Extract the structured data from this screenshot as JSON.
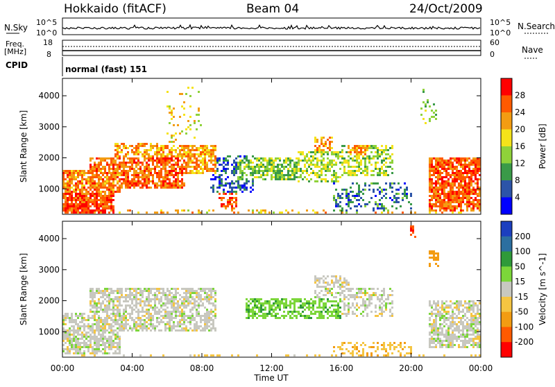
{
  "header": {
    "station": "Hokkaido (fitACF)",
    "beam": "Beam 04",
    "date": "24/Oct/2009"
  },
  "panels": {
    "nsky": {
      "label": "N.Sky",
      "ticks": [
        "10^5",
        "10^0"
      ],
      "right_ticks": [
        "10^5",
        "10^0"
      ],
      "right_label": "N.Search"
    },
    "freq": {
      "label_top": "Freq.",
      "label_unit": "[MHz]",
      "ticks": [
        "18",
        "8"
      ],
      "right_ticks": [
        "60",
        "0"
      ],
      "right_label": "Nave"
    },
    "cpid": {
      "label": "CPID",
      "text": "normal (fast) 151"
    }
  },
  "chart_data": [
    {
      "type": "heatmap",
      "name": "power",
      "xlabel": "Time UT",
      "ylabel": "Slant Range [km]",
      "x_ticks": [
        "00:00",
        "04:00",
        "08:00",
        "12:00",
        "16:00",
        "20:00",
        "00:00"
      ],
      "x_range_hours": [
        0,
        24
      ],
      "y_ticks": [
        1000,
        2000,
        3000,
        4000
      ],
      "y_range_km": [
        180,
        4560
      ],
      "colorbar": {
        "label": "Power [dB]",
        "ticks": [
          4,
          8,
          12,
          16,
          20,
          24,
          28
        ],
        "colors": [
          "#0000ff",
          "#2c54a8",
          "#3a9a48",
          "#8fd23a",
          "#f5e31a",
          "#f39c12",
          "#ff5a00",
          "#ff0000"
        ]
      },
      "blobs": [
        {
          "t0": 0.0,
          "t1": 3.0,
          "r0": 180,
          "r1": 900,
          "v": 27,
          "d": 0.85
        },
        {
          "t0": 0.0,
          "t1": 3.3,
          "r0": 900,
          "r1": 1600,
          "v": 24,
          "d": 0.8
        },
        {
          "t0": 1.5,
          "t1": 7.0,
          "r0": 1000,
          "r1": 2000,
          "v": 25,
          "d": 0.75
        },
        {
          "t0": 3.0,
          "t1": 5.5,
          "r0": 1800,
          "r1": 2500,
          "v": 23,
          "d": 0.55
        },
        {
          "t0": 5.5,
          "t1": 8.8,
          "r0": 1500,
          "r1": 2400,
          "v": 22,
          "d": 0.7
        },
        {
          "t0": 6.0,
          "t1": 8.0,
          "r0": 2500,
          "r1": 4300,
          "v": 18,
          "d": 0.12
        },
        {
          "t0": 8.5,
          "t1": 11.0,
          "r0": 900,
          "r1": 2100,
          "v": 6,
          "d": 0.45
        },
        {
          "t0": 9.0,
          "t1": 10.0,
          "r0": 250,
          "r1": 900,
          "v": 25,
          "d": 0.45
        },
        {
          "t0": 10.0,
          "t1": 13.5,
          "r0": 1300,
          "r1": 2000,
          "v": 13,
          "d": 0.65
        },
        {
          "t0": 13.5,
          "t1": 16.0,
          "r0": 1200,
          "r1": 2200,
          "v": 15,
          "d": 0.55
        },
        {
          "t0": 14.5,
          "t1": 15.5,
          "r0": 2200,
          "r1": 2700,
          "v": 22,
          "d": 0.55
        },
        {
          "t0": 16.0,
          "t1": 19.0,
          "r0": 1400,
          "r1": 2400,
          "v": 15,
          "d": 0.5
        },
        {
          "t0": 16.3,
          "t1": 17.5,
          "r0": 2100,
          "r1": 2400,
          "v": 22,
          "d": 0.6
        },
        {
          "t0": 15.5,
          "t1": 20.0,
          "r0": 300,
          "r1": 1200,
          "v": 8,
          "d": 0.3
        },
        {
          "t0": 21.0,
          "t1": 24.0,
          "r0": 300,
          "r1": 2000,
          "v": 26,
          "d": 0.8
        },
        {
          "t0": 20.5,
          "t1": 21.5,
          "r0": 3000,
          "r1": 4300,
          "v": 14,
          "d": 0.15
        },
        {
          "t0": 0.0,
          "t1": 24.0,
          "r0": 180,
          "r1": 320,
          "v": 20,
          "d": 0.25
        }
      ]
    },
    {
      "type": "heatmap",
      "name": "velocity",
      "xlabel": "Time UT",
      "ylabel": "Slant Range [km]",
      "x_ticks": [
        "00:00",
        "04:00",
        "08:00",
        "12:00",
        "16:00",
        "20:00",
        "00:00"
      ],
      "x_range_hours": [
        0,
        24
      ],
      "y_ticks": [
        1000,
        2000,
        3000,
        4000
      ],
      "y_range_km": [
        180,
        4560
      ],
      "colorbar": {
        "label": "Velocity [m s^-1]",
        "ticks": [
          200,
          100,
          50,
          15,
          -15,
          -50,
          -100,
          -200
        ],
        "colors": [
          "#1c3fbf",
          "#2c6fa0",
          "#2f9a3a",
          "#7cd63a",
          "#c8c8c0",
          "#f5c542",
          "#f39c12",
          "#ff5a00",
          "#ff0000"
        ]
      },
      "blobs": [
        {
          "t0": 0.0,
          "t1": 3.3,
          "r0": 300,
          "r1": 1600,
          "v": 0,
          "d": 0.7
        },
        {
          "t0": 1.5,
          "t1": 8.8,
          "r0": 1000,
          "r1": 2400,
          "v": 0,
          "d": 0.65
        },
        {
          "t0": 10.5,
          "t1": 16.0,
          "r0": 1400,
          "r1": 2100,
          "v": 40,
          "d": 0.6
        },
        {
          "t0": 14.5,
          "t1": 16.5,
          "r0": 2000,
          "r1": 2800,
          "v": 0,
          "d": 0.5
        },
        {
          "t0": 16.0,
          "t1": 19.0,
          "r0": 1500,
          "r1": 2400,
          "v": 0,
          "d": 0.45
        },
        {
          "t0": 15.5,
          "t1": 20.0,
          "r0": 200,
          "r1": 700,
          "v": -40,
          "d": 0.35
        },
        {
          "t0": 21.0,
          "t1": 24.0,
          "r0": 500,
          "r1": 2000,
          "v": 0,
          "d": 0.7
        },
        {
          "t0": 21.0,
          "t1": 21.6,
          "r0": 3100,
          "r1": 3600,
          "v": -80,
          "d": 0.5
        },
        {
          "t0": 20.0,
          "t1": 20.3,
          "r0": 4000,
          "r1": 4400,
          "v": -200,
          "d": 0.5
        },
        {
          "t0": 0.0,
          "t1": 24.0,
          "r0": 180,
          "r1": 300,
          "v": -30,
          "d": 0.2
        }
      ]
    }
  ]
}
